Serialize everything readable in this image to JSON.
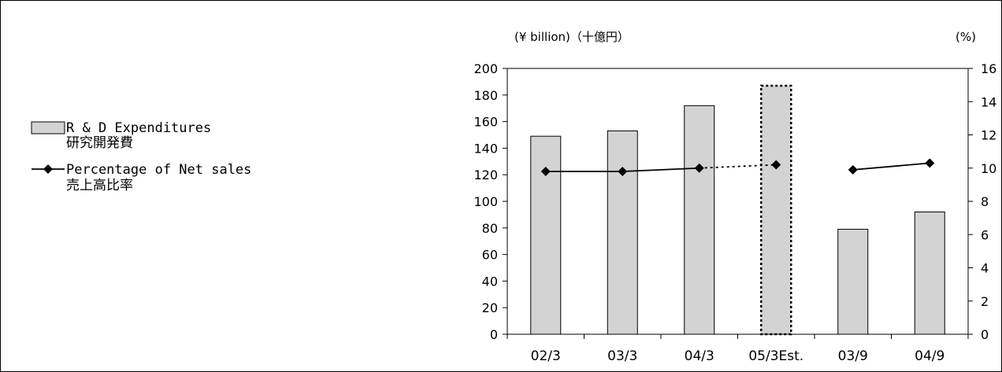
{
  "chart_data": {
    "type": "bar",
    "categories": [
      "02/3",
      "03/3",
      "04/3",
      "05/3Est.",
      "03/9",
      "04/9"
    ],
    "series": [
      {
        "name": "R & D Expenditures 研究開発費",
        "axis": "left",
        "kind": "bar",
        "values": [
          149,
          153,
          172,
          187,
          79,
          92
        ],
        "estimate_index": 3
      },
      {
        "name": "Percentage of Net sales 売上高比率",
        "axis": "right",
        "kind": "line",
        "values": [
          9.8,
          9.8,
          10.0,
          10.2,
          9.9,
          10.3
        ],
        "segments": [
          [
            0,
            2
          ],
          [
            4,
            5
          ]
        ],
        "dotted_segments": [
          [
            2,
            3
          ]
        ]
      }
    ],
    "left_axis": {
      "unit": "(¥ billion)（十億円）",
      "ylim": [
        0,
        200
      ],
      "ticks": [
        0,
        20,
        40,
        60,
        80,
        100,
        120,
        140,
        160,
        180,
        200
      ]
    },
    "right_axis": {
      "unit": "(%)",
      "ylim": [
        0,
        16
      ],
      "ticks": [
        0,
        2,
        4,
        6,
        8,
        10,
        12,
        14,
        16
      ]
    },
    "grid": false,
    "legend_placement": "left",
    "colors": {
      "bar_fill": "#d3d3d3",
      "bar_stroke": "#000000",
      "line": "#000000",
      "marker": "#000000"
    }
  },
  "legend": {
    "bar_label_line1": "R & D Expenditures",
    "bar_label_line2": "研究開発費",
    "line_label_line1": "Percentage of Net sales",
    "line_label_line2": "売上高比率"
  }
}
